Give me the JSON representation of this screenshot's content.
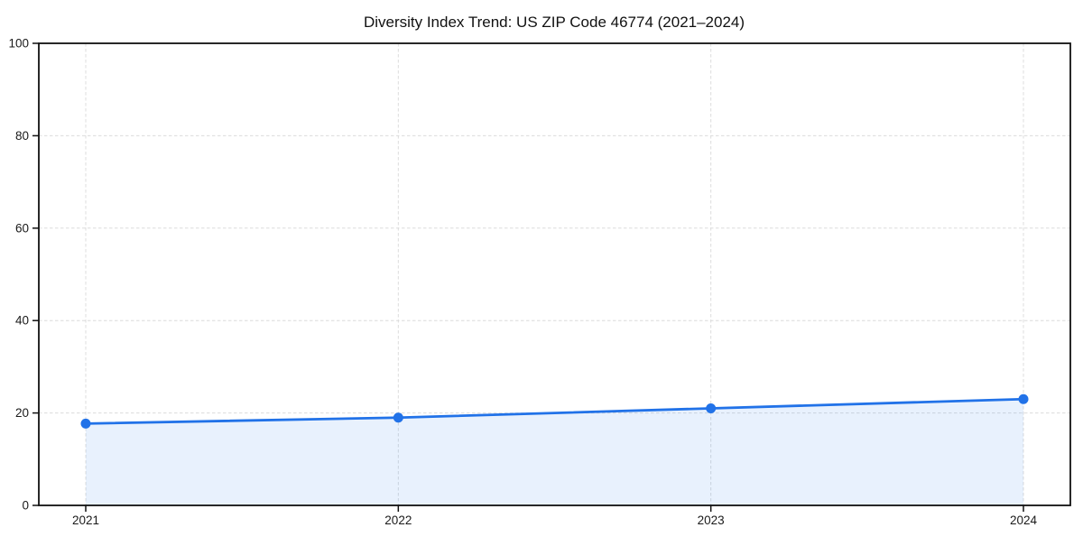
{
  "chart_data": {
    "type": "line",
    "title": "Diversity Index Trend: US ZIP Code 46774 (2021–2024)",
    "categories": [
      "2021",
      "2022",
      "2023",
      "2024"
    ],
    "series": [
      {
        "name": "Diversity Index",
        "values": [
          17.7,
          19,
          21,
          23
        ]
      }
    ],
    "xlabel": "",
    "ylabel": "",
    "ylim": [
      0,
      100
    ],
    "yticks": [
      0,
      20,
      40,
      60,
      80,
      100
    ],
    "grid": "dashed",
    "legend_position": "none",
    "marker": "circle",
    "line_color": "#2172e8",
    "fill_color": "#2172e8",
    "fill_opacity": 0.1,
    "axis_color": "#111111",
    "grid_color": "#dcdcdc",
    "tick_label_color": "#1a1a1a",
    "background_color": "#ffffff"
  }
}
